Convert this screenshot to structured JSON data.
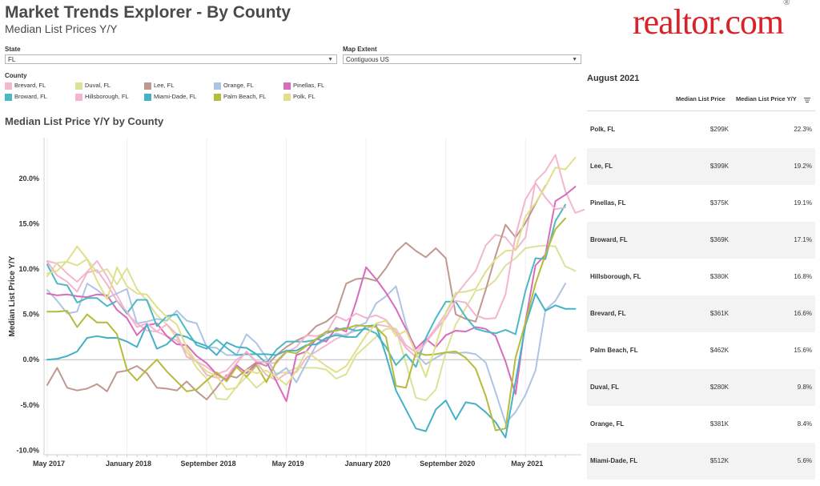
{
  "header": {
    "title": "Market Trends Explorer - By County",
    "subtitle": "Median List Prices Y/Y",
    "brand": "realtor.com",
    "brand_mark": "®"
  },
  "filters": {
    "state_label": "State",
    "state_value": "FL",
    "extent_label": "Map Extent",
    "extent_value": "Contiguous US"
  },
  "legend": {
    "title": "County",
    "items": [
      {
        "label": "Brevard, FL",
        "color": "#f2b8cf"
      },
      {
        "label": "Duval, FL",
        "color": "#dde29a"
      },
      {
        "label": "Lee, FL",
        "color": "#bf9890"
      },
      {
        "label": "Orange, FL",
        "color": "#aec4e4"
      },
      {
        "label": "Pinellas, FL",
        "color": "#d96bbd"
      },
      {
        "label": "Broward, FL",
        "color": "#4bb9c4"
      },
      {
        "label": "Hillsborough, FL",
        "color": "#f5b3cf"
      },
      {
        "label": "Miami-Dade, FL",
        "color": "#43b2c6"
      },
      {
        "label": "Palm Beach, FL",
        "color": "#b7bb3a"
      },
      {
        "label": "Polk, FL",
        "color": "#e0e08a"
      }
    ]
  },
  "chart_title": "Median List Price Y/Y by County",
  "table": {
    "date": "August 2021",
    "col_price": "Median List Price",
    "col_pct": "Median List Price Y/Y",
    "rows": [
      {
        "county": "Polk, FL",
        "price": "$299K",
        "pct": "22.3%"
      },
      {
        "county": "Lee, FL",
        "price": "$399K",
        "pct": "19.2%"
      },
      {
        "county": "Pinellas, FL",
        "price": "$375K",
        "pct": "19.1%"
      },
      {
        "county": "Broward, FL",
        "price": "$369K",
        "pct": "17.1%"
      },
      {
        "county": "Hillsborough, FL",
        "price": "$380K",
        "pct": "16.8%"
      },
      {
        "county": "Brevard, FL",
        "price": "$361K",
        "pct": "16.6%"
      },
      {
        "county": "Palm Beach, FL",
        "price": "$462K",
        "pct": "15.6%"
      },
      {
        "county": "Duval, FL",
        "price": "$280K",
        "pct": "9.8%"
      },
      {
        "county": "Orange, FL",
        "price": "$381K",
        "pct": "8.4%"
      },
      {
        "county": "Miami-Dade, FL",
        "price": "$512K",
        "pct": "5.6%"
      }
    ],
    "row_colors": [
      "#ffffff",
      "#f3f3f3"
    ]
  },
  "chart_data": {
    "type": "line",
    "ylabel": "Median List Price Y/Y",
    "xlabel": "",
    "ylim": [
      -10.5,
      24.5
    ],
    "yticks": [
      -10,
      -5,
      0,
      5,
      10,
      15,
      20
    ],
    "ytick_labels": [
      "-10.0%",
      "-5.0%",
      "0.0%",
      "5.0%",
      "10.0%",
      "15.0%",
      "20.0%"
    ],
    "x_start": "2017-05",
    "x_months": 52,
    "xticks": [
      0,
      8,
      16,
      24,
      32,
      40,
      48
    ],
    "xtick_labels": [
      "May 2017",
      "January 2018",
      "September 2018",
      "May 2019",
      "January 2020",
      "September 2020",
      "May 2021"
    ],
    "series": [
      {
        "name": "Brevard, FL",
        "color": "#f2b8cf",
        "values": [
          10.9,
          10.6,
          9.5,
          8.6,
          9.7,
          10.9,
          9.2,
          7.1,
          5.1,
          4.0,
          3.2,
          3.1,
          2.6,
          2.1,
          0.8,
          -0.2,
          -0.8,
          -1.6,
          -1.2,
          0.0,
          0.8,
          -0.3,
          -1.7,
          -2.3,
          -1.5,
          -1.4,
          0.2,
          0.9,
          1.6,
          2.3,
          2.8,
          3.2,
          3.4,
          3.9,
          3.7,
          3.4,
          1.6,
          0.8,
          2.1,
          3.5,
          5.1,
          7.1,
          8.5,
          9.8,
          12.6,
          13.8,
          13.5,
          12.1,
          13.5,
          19.7,
          20.8,
          22.6,
          18.6,
          16.2,
          16.6
        ]
      },
      {
        "name": "Duval, FL",
        "color": "#dde29a",
        "values": [
          9.2,
          10.7,
          10.8,
          10.4,
          11.1,
          9.6,
          10.0,
          8.3,
          10.1,
          7.8,
          6.5,
          4.9,
          3.9,
          2.4,
          0.9,
          -0.9,
          -2.1,
          -4.3,
          -4.4,
          -3.0,
          -1.9,
          -3.1,
          -2.2,
          -1.5,
          -1.4,
          -0.9,
          -0.9,
          -0.9,
          -1.1,
          -2.1,
          -1.6,
          0.5,
          1.5,
          2.5,
          3.4,
          3.4,
          -0.4,
          -4.2,
          -4.5,
          -3.3,
          0.8,
          3.9,
          5.7,
          7.6,
          7.9,
          8.8,
          10.4,
          11.2,
          12.3,
          12.5,
          12.6,
          12.5,
          10.3,
          9.8
        ]
      },
      {
        "name": "Lee, FL",
        "color": "#bf9890",
        "values": [
          -2.8,
          -0.9,
          -3.1,
          -3.4,
          -3.2,
          -2.7,
          -3.5,
          -1.4,
          -1.2,
          -0.7,
          -1.5,
          -3.1,
          -3.2,
          -3.4,
          -2.4,
          -3.5,
          -4.4,
          -3.1,
          -1.7,
          -2.0,
          -1.1,
          -0.3,
          -0.7,
          0.5,
          1.4,
          2.1,
          2.6,
          3.7,
          4.2,
          5.1,
          8.4,
          8.9,
          9.0,
          8.7,
          10.1,
          11.9,
          12.9,
          12.0,
          11.3,
          12.3,
          11.2,
          5.0,
          4.5,
          4.2,
          7.7,
          11.5,
          14.9,
          13.5,
          15.1,
          17.2,
          19.2
        ]
      },
      {
        "name": "Orange, FL",
        "color": "#aec4e4",
        "values": [
          7.7,
          6.5,
          5.1,
          5.3,
          8.4,
          7.7,
          6.8,
          7.3,
          7.8,
          4.0,
          4.2,
          4.5,
          4.3,
          5.4,
          4.3,
          4.0,
          1.4,
          1.3,
          0.5,
          0.5,
          2.8,
          1.8,
          0.2,
          -1.7,
          -0.9,
          -2.5,
          -0.4,
          1.6,
          2.2,
          2.9,
          2.6,
          3.6,
          4.1,
          6.2,
          7.0,
          8.1,
          3.9,
          0.6,
          -0.5,
          0.2,
          0.8,
          0.7,
          0.8,
          0.6,
          -0.3,
          -3.6,
          -7.0,
          -5.8,
          -3.9,
          -1.2,
          5.5,
          6.5,
          8.4
        ]
      },
      {
        "name": "Pinellas, FL",
        "color": "#d96bbd",
        "values": [
          7.3,
          7.1,
          7.2,
          7.0,
          6.9,
          7.2,
          7.1,
          5.5,
          4.6,
          2.7,
          3.8,
          4.0,
          2.6,
          1.7,
          1.6,
          0.4,
          -0.4,
          -1.6,
          -2.2,
          -0.6,
          -1.5,
          -0.4,
          -0.2,
          -2.4,
          -4.6,
          0.5,
          0.9,
          2.3,
          2.0,
          3.5,
          3.1,
          6.4,
          10.2,
          8.9,
          7.4,
          5.6,
          3.4,
          1.2,
          2.3,
          1.4,
          2.7,
          3.2,
          3.1,
          3.6,
          3.4,
          2.6,
          -0.2,
          -3.8,
          4.2,
          10.4,
          11.6,
          17.5,
          18.2,
          19.1
        ]
      },
      {
        "name": "Broward, FL",
        "color": "#4bb9c4",
        "values": [
          10.5,
          8.4,
          8.2,
          6.3,
          6.8,
          6.8,
          5.9,
          6.5,
          5.1,
          6.6,
          6.6,
          3.7,
          4.8,
          5.0,
          3.2,
          1.6,
          1.2,
          2.2,
          1.3,
          0.5,
          0.6,
          0.6,
          -0.4,
          1.1,
          2.0,
          2.0,
          2.0,
          2.2,
          2.9,
          3.3,
          3.5,
          3.2,
          3.4,
          2.9,
          1.4,
          -0.6,
          0.6,
          -0.8,
          2.4,
          4.6,
          6.4,
          6.4,
          4.7,
          3.4,
          3.1,
          2.9,
          3.3,
          2.8,
          7.6,
          11.2,
          11.1,
          15.3,
          17.1
        ]
      },
      {
        "name": "Hillsborough, FL",
        "color": "#f5b3cf",
        "values": [
          10.8,
          9.3,
          8.6,
          7.5,
          9.6,
          9.9,
          8.3,
          6.5,
          5.3,
          3.6,
          4.0,
          3.1,
          3.9,
          2.8,
          0.3,
          -0.2,
          -1.7,
          -2.0,
          -1.9,
          -0.4,
          0.9,
          -0.2,
          -0.3,
          -0.4,
          0.8,
          1.4,
          2.7,
          2.6,
          2.9,
          4.8,
          4.3,
          5.1,
          4.6,
          4.9,
          4.4,
          3.0,
          1.3,
          0.3,
          1.9,
          3.3,
          4.6,
          6.5,
          6.3,
          4.9,
          4.5,
          4.6,
          7.2,
          13.7,
          17.7,
          19.5,
          17.9,
          16.6,
          16.8
        ]
      },
      {
        "name": "Miami-Dade, FL",
        "color": "#43b2c6",
        "values": [
          0.0,
          0.1,
          0.4,
          0.9,
          2.4,
          2.6,
          2.4,
          2.4,
          2.0,
          1.4,
          3.9,
          1.2,
          1.7,
          2.8,
          2.5,
          1.9,
          1.5,
          0.5,
          1.9,
          1.4,
          1.3,
          0.6,
          0.6,
          0.5,
          1.0,
          1.0,
          1.6,
          1.7,
          2.4,
          2.7,
          2.5,
          2.5,
          3.7,
          3.8,
          0.5,
          -3.4,
          -5.5,
          -7.6,
          -7.9,
          -5.5,
          -4.5,
          -6.6,
          -4.7,
          -4.9,
          -5.8,
          -6.9,
          -8.6,
          -2.4,
          3.8,
          7.3,
          5.4,
          6.0,
          5.6,
          5.6
        ]
      },
      {
        "name": "Palm Beach, FL",
        "color": "#b7bb3a",
        "values": [
          5.3,
          5.3,
          5.4,
          3.6,
          5.0,
          4.1,
          4.1,
          2.8,
          -1.1,
          -2.3,
          -1.1,
          0.0,
          -1.3,
          -2.4,
          -3.5,
          -3.3,
          -2.3,
          -1.4,
          -2.4,
          -0.8,
          -1.9,
          -0.6,
          -2.5,
          -0.2,
          0.9,
          0.7,
          1.5,
          2.3,
          3.1,
          3.2,
          3.4,
          3.8,
          3.7,
          3.6,
          2.5,
          -2.9,
          -3.1,
          0.8,
          0.5,
          0.6,
          0.8,
          0.9,
          0.2,
          -1.0,
          -4.0,
          -7.8,
          -7.6,
          0.2,
          4.1,
          8.4,
          11.6,
          14.4,
          15.6
        ]
      },
      {
        "name": "Polk, FL",
        "color": "#e0e08a",
        "values": [
          9.5,
          9.8,
          10.9,
          12.5,
          11.1,
          8.7,
          6.7,
          10.2,
          8.1,
          7.3,
          7.2,
          5.8,
          4.7,
          3.9,
          1.3,
          -0.3,
          -1.3,
          -1.8,
          -3.3,
          -3.1,
          -1.1,
          -1.5,
          -1.2,
          -1.9,
          -2.8,
          -1.2,
          0.9,
          0.1,
          -0.7,
          -1.4,
          -0.7,
          1.0,
          2.7,
          4.0,
          4.3,
          2.6,
          3.2,
          0.8,
          -1.9,
          1.6,
          5.2,
          7.4,
          7.5,
          7.8,
          9.7,
          11.1,
          12.0,
          12.1,
          15.8,
          17.3,
          19.1,
          21.2,
          21.0,
          22.3
        ]
      }
    ]
  }
}
